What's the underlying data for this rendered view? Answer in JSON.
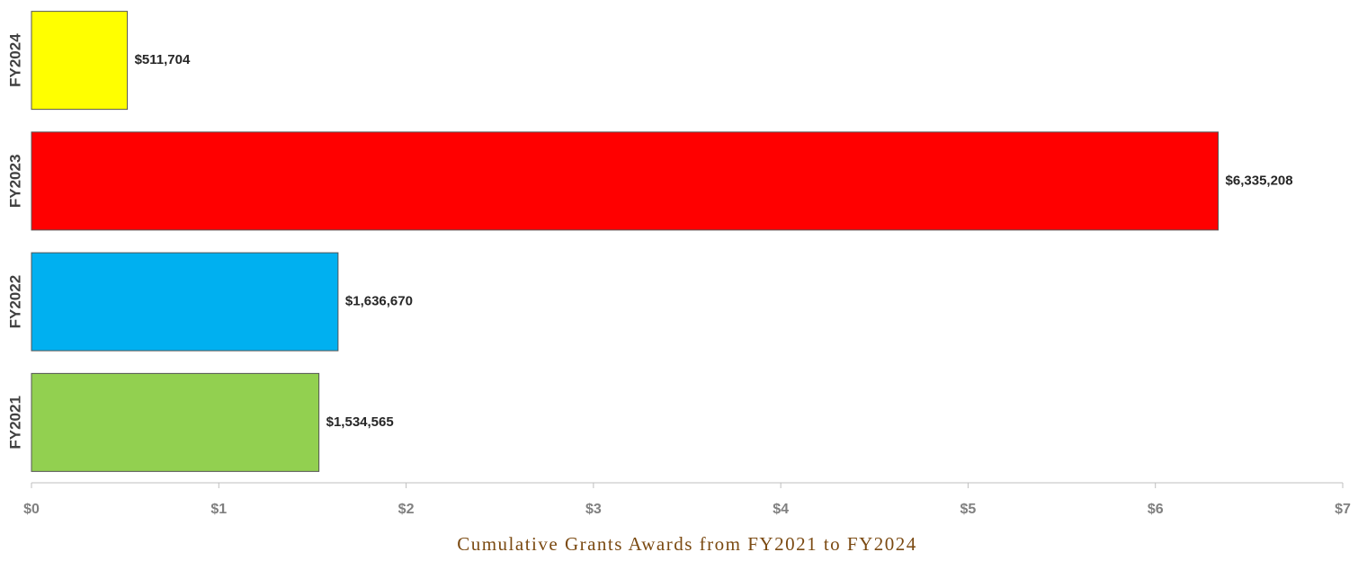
{
  "chart_data": {
    "type": "hbar",
    "title": "Cumulative Grants Awards from FY2021 to FY2024",
    "categories": [
      "FY2024",
      "FY2023",
      "FY2022",
      "FY2021"
    ],
    "values": [
      0.511704,
      6.335208,
      1.63667,
      1.534565
    ],
    "value_labels": [
      "$511,704",
      "$6,335,208",
      "$1,636,670",
      "$1,534,565"
    ],
    "colors": [
      "#ffff00",
      "#ff0000",
      "#00b0f0",
      "#92d050"
    ],
    "xlim": [
      0,
      7
    ],
    "xticks": [
      {
        "value": 0,
        "label": "$0"
      },
      {
        "value": 1,
        "label": "$1"
      },
      {
        "value": 2,
        "label": "$2"
      },
      {
        "value": 3,
        "label": "$3"
      },
      {
        "value": 4,
        "label": "$4"
      },
      {
        "value": 5,
        "label": "$5"
      },
      {
        "value": 6,
        "label": "$6"
      },
      {
        "value": 7,
        "label": "$7"
      }
    ],
    "grid": false
  }
}
